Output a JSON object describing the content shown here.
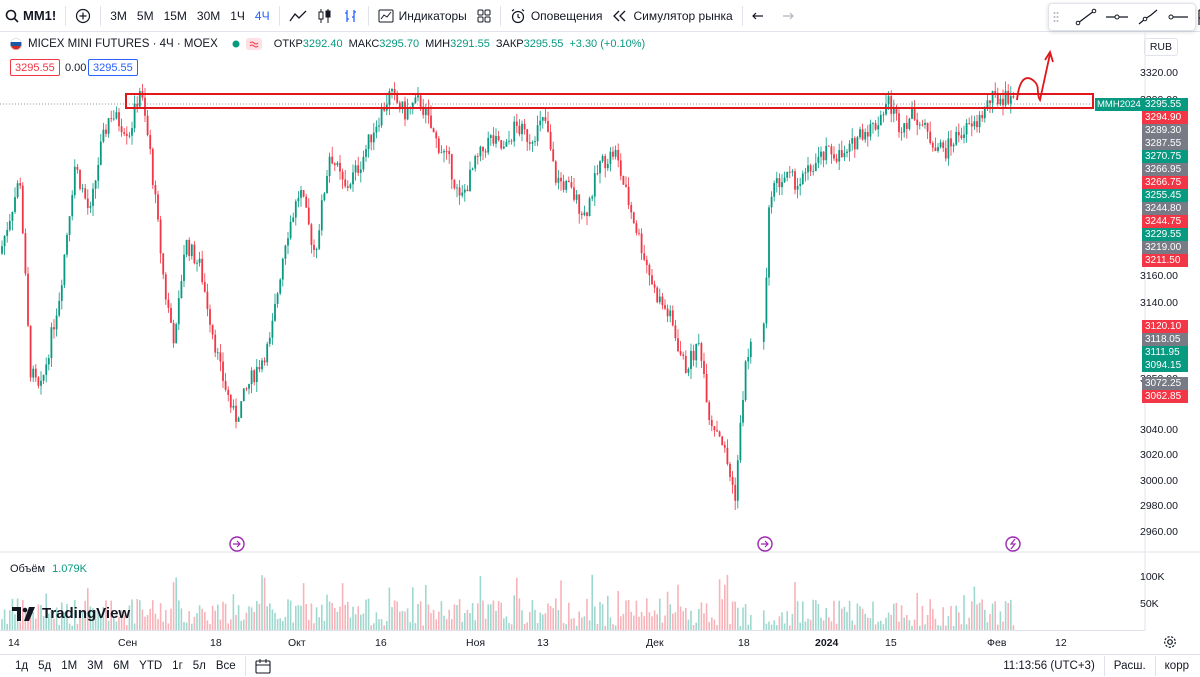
{
  "toolbar": {
    "symbol": "MM1!",
    "intervals": [
      "3М",
      "5М",
      "15М",
      "30М",
      "1Ч",
      "4Ч"
    ],
    "active_interval": "4Ч",
    "indicators_label": "Индикаторы",
    "alerts_label": "Оповещения",
    "replay_label": "Симулятор рынка"
  },
  "legend": {
    "title": "MICEX MINI FUTURES · 4Ч · MOEX",
    "open_label": "ОТКР",
    "open_value": "3292.40",
    "high_label": "МАКС",
    "high_value": "3295.70",
    "low_label": "МИН",
    "low_value": "3291.55",
    "close_label": "ЗАКР",
    "close_value": "3295.55",
    "change_value": "+3.30 (+0.10%)",
    "sell_price": "3295.55",
    "spread": "0.00",
    "buy_price": "3295.55"
  },
  "currency": "RUB",
  "price_axis": [
    "3320.00",
    "3300.00",
    "3160.00",
    "3140.00",
    "3050.00",
    "3040.00",
    "3020.00",
    "3000.00",
    "2980.00",
    "2960.00"
  ],
  "price_tags": [
    {
      "text": "3294.90",
      "color": "#f23645"
    },
    {
      "text": "3289.30",
      "color": "#787b86"
    },
    {
      "text": "3287.55",
      "color": "#787b86"
    },
    {
      "text": "3270.75",
      "color": "#089981"
    },
    {
      "text": "3266.95",
      "color": "#787b86"
    },
    {
      "text": "3266.75",
      "color": "#f23645"
    },
    {
      "text": "3255.45",
      "color": "#089981"
    },
    {
      "text": "3244.80",
      "color": "#787b86"
    },
    {
      "text": "3244.75",
      "color": "#f23645"
    },
    {
      "text": "3229.55",
      "color": "#089981"
    },
    {
      "text": "3219.00",
      "color": "#787b86"
    },
    {
      "text": "3211.50",
      "color": "#f23645"
    },
    {
      "text": "3120.10",
      "color": "#f23645"
    },
    {
      "text": "3118.05",
      "color": "#787b86"
    },
    {
      "text": "3111.95",
      "color": "#089981"
    },
    {
      "text": "3094.15",
      "color": "#089981"
    },
    {
      "text": "3072.25",
      "color": "#787b86"
    },
    {
      "text": "3062.85",
      "color": "#f23645"
    }
  ],
  "current_price": {
    "ticker": "MMH2024",
    "value": "3295.55"
  },
  "volume": {
    "label": "Объём",
    "value": "1.079K",
    "axis": [
      "100K",
      "50K"
    ]
  },
  "time_axis": [
    "14",
    "Сен",
    "18",
    "Окт",
    "16",
    "Ноя",
    "13",
    "Дек",
    "18",
    "2024",
    "15",
    "Фев",
    "12"
  ],
  "bottom": {
    "ranges": [
      "1д",
      "5д",
      "1М",
      "3М",
      "6М",
      "YTD",
      "1г",
      "5л",
      "Все"
    ],
    "time": "11:13:56 (UTC+3)",
    "session": "Расш.",
    "adjust": "корр"
  },
  "logo_text": "TradingView",
  "chart_data": {
    "type": "candlestick",
    "title": "MICEX MINI FUTURES · 4Ч · MOEX",
    "x_labels": [
      "14",
      "Сен",
      "18",
      "Окт",
      "16",
      "Ноя",
      "13",
      "Дек",
      "18",
      "2024",
      "15",
      "Фев",
      "12"
    ],
    "ylim": [
      2960,
      3320
    ],
    "approx_close_path": [
      [
        0,
        3170
      ],
      [
        20,
        3230
      ],
      [
        30,
        3080
      ],
      [
        40,
        3060
      ],
      [
        60,
        3140
      ],
      [
        75,
        3240
      ],
      [
        90,
        3200
      ],
      [
        100,
        3250
      ],
      [
        110,
        3280
      ],
      [
        130,
        3265
      ],
      [
        140,
        3300
      ],
      [
        150,
        3250
      ],
      [
        165,
        3140
      ],
      [
        175,
        3100
      ],
      [
        185,
        3180
      ],
      [
        200,
        3160
      ],
      [
        220,
        3080
      ],
      [
        235,
        3040
      ],
      [
        250,
        3070
      ],
      [
        270,
        3100
      ],
      [
        285,
        3180
      ],
      [
        300,
        3220
      ],
      [
        315,
        3170
      ],
      [
        330,
        3250
      ],
      [
        345,
        3220
      ],
      [
        360,
        3240
      ],
      [
        375,
        3270
      ],
      [
        390,
        3295
      ],
      [
        405,
        3280
      ],
      [
        420,
        3290
      ],
      [
        435,
        3260
      ],
      [
        450,
        3240
      ],
      [
        460,
        3210
      ],
      [
        475,
        3240
      ],
      [
        490,
        3260
      ],
      [
        505,
        3250
      ],
      [
        515,
        3270
      ],
      [
        530,
        3260
      ],
      [
        545,
        3275
      ],
      [
        555,
        3230
      ],
      [
        570,
        3220
      ],
      [
        585,
        3200
      ],
      [
        600,
        3240
      ],
      [
        615,
        3250
      ],
      [
        625,
        3220
      ],
      [
        640,
        3180
      ],
      [
        655,
        3140
      ],
      [
        670,
        3120
      ],
      [
        685,
        3080
      ],
      [
        700,
        3100
      ],
      [
        710,
        3040
      ],
      [
        720,
        3030
      ],
      [
        735,
        2980
      ],
      [
        745,
        3080
      ],
      [
        755,
        3110
      ],
      [
        765,
        3120
      ],
      [
        770,
        3220
      ],
      [
        785,
        3230
      ],
      [
        800,
        3225
      ],
      [
        815,
        3240
      ],
      [
        830,
        3250
      ],
      [
        845,
        3245
      ],
      [
        860,
        3265
      ],
      [
        875,
        3270
      ],
      [
        888,
        3290
      ],
      [
        900,
        3270
      ],
      [
        915,
        3280
      ],
      [
        930,
        3260
      ],
      [
        945,
        3250
      ],
      [
        960,
        3265
      ],
      [
        975,
        3270
      ],
      [
        990,
        3290
      ],
      [
        1015,
        3295
      ]
    ],
    "annotations": [
      "resistance zone rectangle near 3295",
      "upward arrow"
    ]
  }
}
